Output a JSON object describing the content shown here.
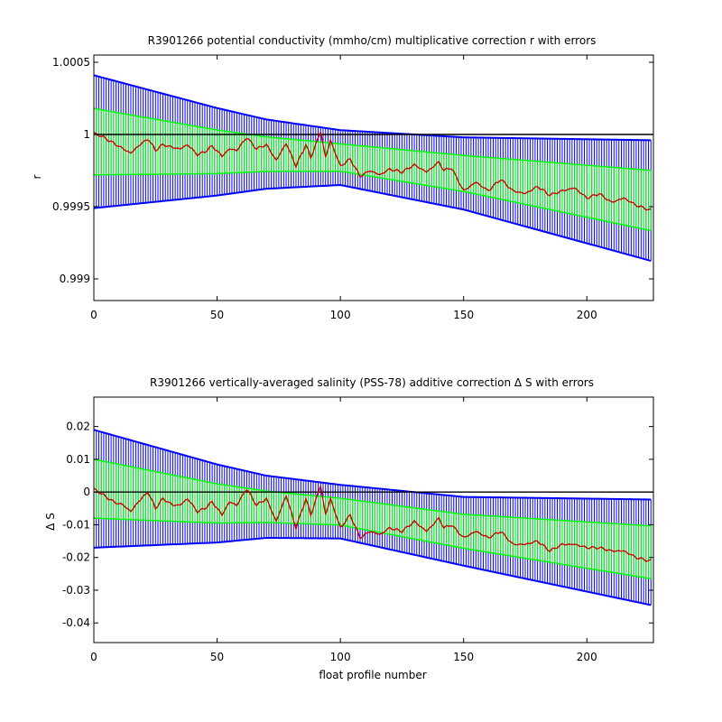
{
  "chart_data": [
    {
      "type": "line",
      "title": "R3901266 potential conductivity (mmho/cm) multiplicative correction r with errors",
      "xlabel": "",
      "ylabel": "r",
      "xlim": [
        0,
        227
      ],
      "ylim": [
        0.99885,
        1.00055
      ],
      "x_ticks": [
        0,
        50,
        100,
        150,
        200
      ],
      "x_tick_labels": [
        "0",
        "50",
        "100",
        "150",
        "200"
      ],
      "y_ticks": [
        0.999,
        0.9995,
        1,
        1.0005
      ],
      "y_tick_labels": [
        "0.999",
        "0.9995",
        "1",
        "1.0005"
      ],
      "reference_line": 1.0,
      "profile_count": 227,
      "fit_center_knots": {
        "x": [
          0,
          50,
          100,
          150,
          227
        ],
        "y": [
          0.99995,
          0.99988,
          0.99984,
          0.99973,
          0.99954
        ]
      },
      "outer_halfwidth_knots": {
        "x": [
          0,
          70,
          100,
          150,
          227
        ],
        "y": [
          0.00046,
          0.00024,
          0.00019,
          0.00025,
          0.00042
        ]
      },
      "inner_halfwidth_knots": {
        "x": [
          0,
          70,
          100,
          150,
          227
        ],
        "y": [
          0.00023,
          0.00012,
          9.5e-05,
          0.000125,
          0.00021
        ]
      },
      "correction_knots": {
        "x": [
          0,
          4,
          8,
          12,
          15,
          18,
          22,
          25,
          28,
          32,
          35,
          38,
          42,
          45,
          48,
          52,
          55,
          58,
          62,
          66,
          70,
          74,
          78,
          82,
          86,
          88,
          92,
          94,
          96,
          100,
          104,
          108,
          112,
          116,
          120,
          125,
          130,
          135,
          140,
          142,
          145,
          150,
          155,
          160,
          165,
          170,
          175,
          180,
          185,
          190,
          195,
          200,
          205,
          210,
          215,
          220,
          225,
          227
        ],
        "y": [
          1.00001,
          0.99998,
          0.99994,
          0.9999,
          0.99987,
          0.99992,
          0.99997,
          0.99989,
          0.99993,
          0.99991,
          0.9999,
          0.99993,
          0.99986,
          0.99988,
          0.99992,
          0.99985,
          0.9999,
          0.99989,
          0.99998,
          0.9999,
          0.99993,
          0.99982,
          0.99994,
          0.99978,
          0.99993,
          0.99984,
          1.00002,
          0.99984,
          0.99996,
          0.99978,
          0.99983,
          0.99971,
          0.99975,
          0.99972,
          0.99976,
          0.99974,
          0.99979,
          0.99974,
          0.99981,
          0.99975,
          0.99977,
          0.99961,
          0.99967,
          0.99961,
          0.99969,
          0.99961,
          0.99959,
          0.99964,
          0.99958,
          0.99961,
          0.99963,
          0.99956,
          0.99959,
          0.99953,
          0.99956,
          0.99951,
          0.99948,
          0.99947
        ]
      },
      "series": [
        {
          "name": "",
          "color": "#0000ff",
          "role": "outer error bars"
        },
        {
          "name": "",
          "color": "#00ff00",
          "role": "inner error bars"
        },
        {
          "name": "",
          "color": "#cc0000",
          "role": "correction r"
        }
      ]
    },
    {
      "type": "line",
      "title": "R3901266 vertically-averaged salinity (PSS-78) additive correction Δ S with errors",
      "xlabel": "float profile number",
      "ylabel": "Δ S",
      "xlim": [
        0,
        227
      ],
      "ylim": [
        -0.046,
        0.029
      ],
      "x_ticks": [
        0,
        50,
        100,
        150,
        200
      ],
      "x_tick_labels": [
        "0",
        "50",
        "100",
        "150",
        "200"
      ],
      "y_ticks": [
        -0.04,
        -0.03,
        -0.02,
        -0.01,
        0,
        0.01,
        0.02
      ],
      "y_tick_labels": [
        "-0.04",
        "-0.03",
        "-0.02",
        "-0.01",
        "0",
        "0.01",
        "0.02"
      ],
      "reference_line": 0,
      "profile_count": 227,
      "fit_center_knots": {
        "x": [
          0,
          50,
          100,
          150,
          227
        ],
        "y": [
          0.001,
          -0.0035,
          -0.006,
          -0.012,
          -0.0185
        ]
      },
      "outer_halfwidth_knots": {
        "x": [
          0,
          70,
          100,
          150,
          227
        ],
        "y": [
          0.018,
          0.0095,
          0.0082,
          0.0105,
          0.0162
        ]
      },
      "inner_halfwidth_knots": {
        "x": [
          0,
          70,
          100,
          150,
          227
        ],
        "y": [
          0.009,
          0.0048,
          0.0041,
          0.0052,
          0.0081
        ]
      },
      "correction_knots": {
        "x": [
          0,
          4,
          8,
          12,
          15,
          18,
          22,
          25,
          28,
          32,
          35,
          38,
          42,
          45,
          48,
          52,
          55,
          58,
          62,
          66,
          70,
          74,
          78,
          82,
          86,
          88,
          92,
          94,
          96,
          100,
          104,
          108,
          112,
          116,
          120,
          125,
          130,
          135,
          140,
          142,
          145,
          150,
          155,
          160,
          165,
          170,
          175,
          180,
          185,
          190,
          195,
          200,
          205,
          210,
          215,
          220,
          225,
          227
        ],
        "y": [
          0.001,
          -0.001,
          -0.003,
          -0.004,
          -0.006,
          -0.003,
          0.0,
          -0.005,
          -0.002,
          -0.004,
          -0.004,
          -0.002,
          -0.006,
          -0.005,
          -0.003,
          -0.007,
          -0.003,
          -0.004,
          0.001,
          -0.004,
          -0.002,
          -0.009,
          -0.001,
          -0.011,
          -0.002,
          -0.007,
          0.002,
          -0.007,
          -0.002,
          -0.011,
          -0.007,
          -0.014,
          -0.012,
          -0.013,
          -0.011,
          -0.012,
          -0.009,
          -0.012,
          -0.008,
          -0.011,
          -0.01,
          -0.014,
          -0.012,
          -0.014,
          -0.012,
          -0.016,
          -0.016,
          -0.015,
          -0.018,
          -0.016,
          -0.016,
          -0.017,
          -0.017,
          -0.018,
          -0.018,
          -0.02,
          -0.021,
          -0.021
        ]
      },
      "series": [
        {
          "name": "",
          "color": "#0000ff",
          "role": "outer error bars"
        },
        {
          "name": "",
          "color": "#00ff00",
          "role": "inner error bars"
        },
        {
          "name": "",
          "color": "#cc0000",
          "role": "correction Δ S"
        }
      ]
    }
  ]
}
